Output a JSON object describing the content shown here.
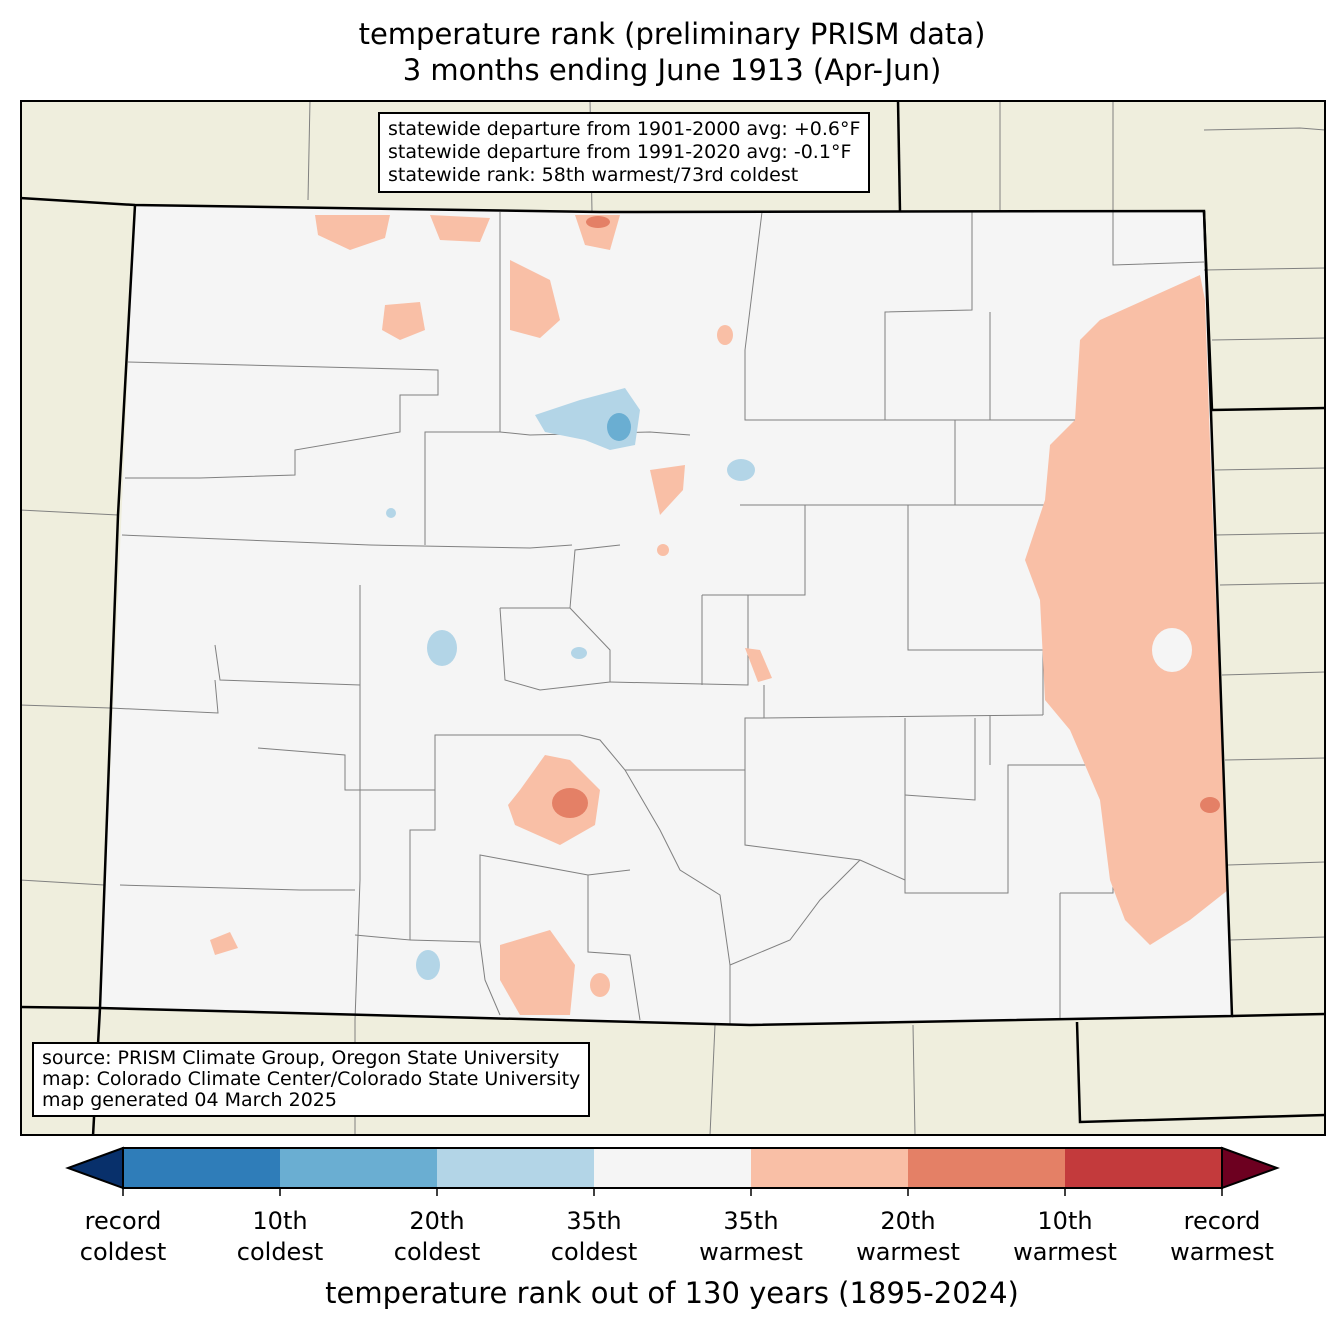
{
  "title": {
    "line1": "temperature rank (preliminary PRISM data)",
    "line2": "3 months ending June 1913 (Apr-Jun)"
  },
  "stats_box": {
    "line1": "statewide departure from 1901-2000 avg: +0.6°F",
    "line2": "statewide departure from 1991-2020 avg: -0.1°F",
    "line3": "statewide rank: 58th warmest/73rd coldest"
  },
  "source_box": {
    "line1": "source: PRISM Climate Group, Oregon State University",
    "line2": "map: Colorado Climate Center/Colorado State University",
    "line3": "map generated 04 March 2025"
  },
  "colorbar": {
    "title": "temperature rank out of 130 years (1895-2024)",
    "colors": {
      "record_coldest": "#08306b",
      "coldest_10": "#2f7db9",
      "coldest_20": "#6aaed2",
      "coldest_35": "#b3d5e7",
      "near_normal": "#f5f5f5",
      "warmest_35": "#f9bfa6",
      "warmest_20": "#e48066",
      "warmest_10": "#c33a3c",
      "record_warmest": "#6d0020"
    },
    "ticks": [
      {
        "line1": "record",
        "line2": "coldest"
      },
      {
        "line1": "10th",
        "line2": "coldest"
      },
      {
        "line1": "20th",
        "line2": "coldest"
      },
      {
        "line1": "35th",
        "line2": "coldest"
      },
      {
        "line1": "35th",
        "line2": "warmest"
      },
      {
        "line1": "20th",
        "line2": "warmest"
      },
      {
        "line1": "10th",
        "line2": "warmest"
      },
      {
        "line1": "record",
        "line2": "warmest"
      }
    ]
  }
}
